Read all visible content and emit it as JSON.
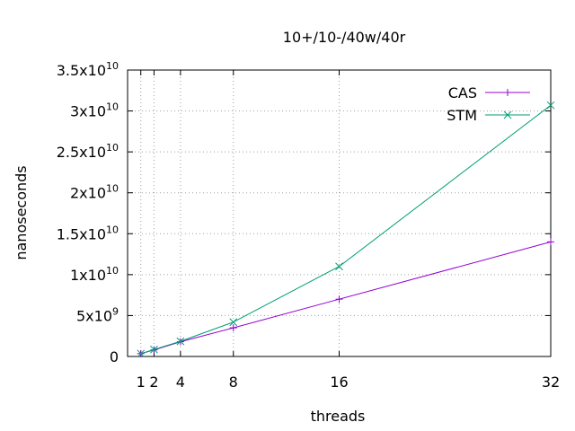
{
  "chart_data": {
    "type": "line",
    "title": "10+/10-/40w/40r",
    "xlabel": "threads",
    "ylabel": "nanoseconds",
    "xlim": [
      0,
      32
    ],
    "ylim": [
      0,
      35000000000
    ],
    "grid": true,
    "legend_position": "top-right",
    "x_ticks": [
      {
        "value": 1,
        "label": "1"
      },
      {
        "value": 2,
        "label": "2"
      },
      {
        "value": 4,
        "label": "4"
      },
      {
        "value": 8,
        "label": "8"
      },
      {
        "value": 16,
        "label": "16"
      },
      {
        "value": 32,
        "label": "32"
      }
    ],
    "y_ticks": [
      {
        "value": 0,
        "mantissa": "0",
        "exp": ""
      },
      {
        "value": 5000000000,
        "mantissa": "5x10",
        "exp": "9"
      },
      {
        "value": 10000000000,
        "mantissa": "1x10",
        "exp": "10"
      },
      {
        "value": 15000000000,
        "mantissa": "1.5x10",
        "exp": "10"
      },
      {
        "value": 20000000000,
        "mantissa": "2x10",
        "exp": "10"
      },
      {
        "value": 25000000000,
        "mantissa": "2.5x10",
        "exp": "10"
      },
      {
        "value": 30000000000,
        "mantissa": "3x10",
        "exp": "10"
      },
      {
        "value": 35000000000,
        "mantissa": "3.5x10",
        "exp": "10"
      }
    ],
    "series": [
      {
        "name": "CAS",
        "color": "#9400d3",
        "marker": "plus",
        "points": [
          {
            "x": 1,
            "y": 350000000
          },
          {
            "x": 2,
            "y": 800000000
          },
          {
            "x": 4,
            "y": 1800000000
          },
          {
            "x": 8,
            "y": 3500000000
          },
          {
            "x": 16,
            "y": 7000000000
          },
          {
            "x": 32,
            "y": 14000000000
          }
        ]
      },
      {
        "name": "STM",
        "color": "#009e73",
        "marker": "cross",
        "points": [
          {
            "x": 1,
            "y": 350000000
          },
          {
            "x": 2,
            "y": 850000000
          },
          {
            "x": 4,
            "y": 1850000000
          },
          {
            "x": 8,
            "y": 4200000000
          },
          {
            "x": 16,
            "y": 11000000000
          },
          {
            "x": 32,
            "y": 30700000000
          }
        ]
      }
    ]
  }
}
